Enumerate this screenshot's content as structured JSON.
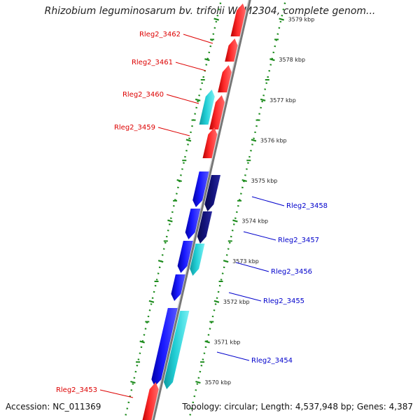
{
  "title": "Rhizobium leguminosarum bv. trifolii WSM2304, complete genom...",
  "accession": "Accession: NC_011369",
  "topology": "Topology: circular; Length: 4,537,948 bp; Genes: 4,387",
  "colors": {
    "backbone": "#8c8c8c",
    "ticks": "#1e8c1e",
    "red": "#ff1a1a",
    "blue": "#1a1aff",
    "navy": "#12127a",
    "cyan": "#22cfd6",
    "label_red": "#dd0000",
    "label_blue": "#0000cc"
  },
  "scale": {
    "unit": "kbp",
    "ticks": [
      "3570 kbp",
      "3571 kbp",
      "3572 kbp",
      "3573 kbp",
      "3574 kbp",
      "3575 kbp",
      "3576 kbp",
      "3577 kbp",
      "3578 kbp",
      "3579 kbp"
    ]
  },
  "gene_labels": [
    {
      "name": "Rleg2_3462",
      "color": "red"
    },
    {
      "name": "Rleg2_3461",
      "color": "red"
    },
    {
      "name": "Rleg2_3460",
      "color": "red"
    },
    {
      "name": "Rleg2_3459",
      "color": "red"
    },
    {
      "name": "Rleg2_3458",
      "color": "blue"
    },
    {
      "name": "Rleg2_3457",
      "color": "blue"
    },
    {
      "name": "Rleg2_3456",
      "color": "blue"
    },
    {
      "name": "Rleg2_3455",
      "color": "blue"
    },
    {
      "name": "Rleg2_3454",
      "color": "blue"
    },
    {
      "name": "Rleg2_3453",
      "color": "red"
    }
  ]
}
